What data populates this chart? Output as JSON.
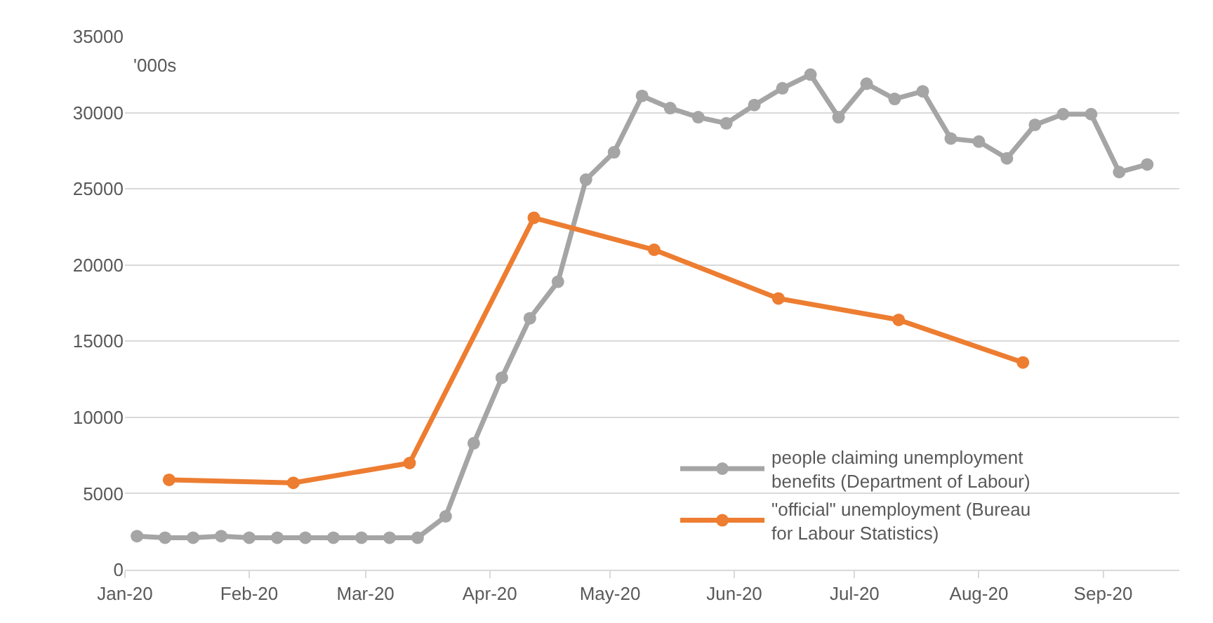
{
  "chart_data": {
    "type": "line",
    "annotations": [
      "'000s"
    ],
    "series": [
      {
        "name": "people claiming unemployment benefits (Department of Labour)",
        "color": "#a5a5a5",
        "x": [
          "2020-01-04",
          "2020-01-11",
          "2020-01-18",
          "2020-01-25",
          "2020-02-01",
          "2020-02-08",
          "2020-02-15",
          "2020-02-22",
          "2020-02-29",
          "2020-03-07",
          "2020-03-14",
          "2020-03-21",
          "2020-03-28",
          "2020-04-04",
          "2020-04-11",
          "2020-04-18",
          "2020-04-25",
          "2020-05-02",
          "2020-05-09",
          "2020-05-16",
          "2020-05-23",
          "2020-05-30",
          "2020-06-06",
          "2020-06-13",
          "2020-06-20",
          "2020-06-27",
          "2020-07-04",
          "2020-07-11",
          "2020-07-18",
          "2020-07-25",
          "2020-08-01",
          "2020-08-08",
          "2020-08-15",
          "2020-08-22",
          "2020-08-29",
          "2020-09-05",
          "2020-09-12"
        ],
        "values": [
          2200,
          2100,
          2100,
          2200,
          2100,
          2100,
          2100,
          2100,
          2100,
          2100,
          2100,
          3500,
          8300,
          12600,
          16500,
          18900,
          25600,
          27400,
          31100,
          30300,
          29700,
          29300,
          30500,
          31600,
          32500,
          29700,
          31900,
          30900,
          31400,
          28300,
          28100,
          27000,
          29200,
          29900,
          29900,
          26100,
          26600
        ]
      },
      {
        "name": "\"official\" unemployment (Bureau for Labour Statistics)",
        "color": "#ed7d31",
        "x": [
          "2020-01-12",
          "2020-02-12",
          "2020-03-12",
          "2020-04-12",
          "2020-05-12",
          "2020-06-12",
          "2020-07-12",
          "2020-08-12"
        ],
        "values": [
          5900,
          5700,
          7000,
          23100,
          21000,
          17800,
          16400,
          13600
        ]
      }
    ],
    "xlim": [
      "2020-01-01",
      "2020-09-20"
    ],
    "xticks": [
      {
        "value": "2020-01-01",
        "label": "Jan-20"
      },
      {
        "value": "2020-02-01",
        "label": "Feb-20"
      },
      {
        "value": "2020-03-01",
        "label": "Mar-20"
      },
      {
        "value": "2020-04-01",
        "label": "Apr-20"
      },
      {
        "value": "2020-05-01",
        "label": "May-20"
      },
      {
        "value": "2020-06-01",
        "label": "Jun-20"
      },
      {
        "value": "2020-07-01",
        "label": "Jul-20"
      },
      {
        "value": "2020-08-01",
        "label": "Aug-20"
      },
      {
        "value": "2020-09-01",
        "label": "Sep-20"
      }
    ],
    "ylim": [
      0,
      35000
    ],
    "yticks": [
      0,
      5000,
      10000,
      15000,
      20000,
      25000,
      30000,
      35000
    ],
    "grid": "y",
    "legend": "bottom right",
    "marker": "circle",
    "line_style": "solid"
  }
}
